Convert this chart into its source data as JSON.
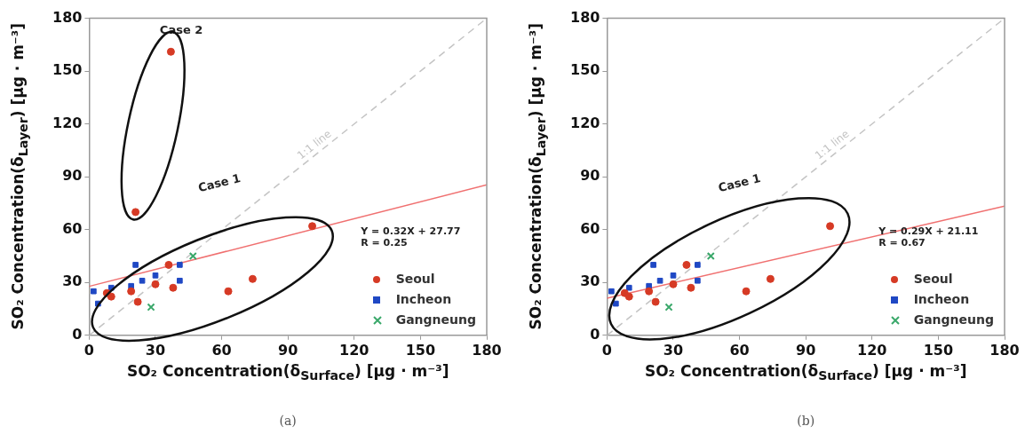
{
  "chart_data": [
    {
      "type": "scatter",
      "xlabel": "SO₂ Concentration(δ$_{Surface}$) [μg · m⁻³]",
      "ylabel": "SO₂ Concentration(δ$_{Layer}$) [μg · m⁻³]",
      "xlim": [
        0,
        180
      ],
      "ylim": [
        0,
        180
      ],
      "xticks": [
        0,
        30,
        60,
        90,
        120,
        150,
        180
      ],
      "yticks": [
        0,
        30,
        60,
        90,
        120,
        150,
        180
      ],
      "legend": "bottom right",
      "annotations": [
        "Case 2",
        "Case 1",
        "Y = 0.32X + 27.77",
        "R = 0.25",
        "(a)"
      ],
      "series": [
        {
          "name": "Seoul",
          "color": "#d63a25",
          "marker": "circle",
          "x": [
            21,
            37,
            101,
            36,
            30,
            38,
            19,
            8,
            10,
            22,
            63,
            74
          ],
          "values": [
            70,
            161,
            62,
            40,
            29,
            27,
            25,
            24,
            22,
            19,
            25,
            32
          ]
        },
        {
          "name": "Incheon",
          "color": "#1f48c4",
          "marker": "square",
          "x": [
            2,
            4,
            10,
            19,
            21,
            24,
            30,
            41,
            41
          ],
          "values": [
            25,
            18,
            27,
            28,
            40,
            31,
            34,
            40,
            31
          ]
        },
        {
          "name": "Gangneung",
          "color": "#3aa86a",
          "marker": "cross",
          "x": [
            47,
            28
          ],
          "values": [
            45,
            16
          ]
        },
        {
          "type": "line",
          "color": "#f07070",
          "marker": "none",
          "x": [
            0,
            180
          ],
          "values": [
            27.8,
            85.4
          ]
        },
        {
          "name": "1:1 line",
          "type": "line",
          "color": "#c4c4c4",
          "marker": "none",
          "line_style": "dashed",
          "x": [
            0,
            180
          ],
          "values": [
            0,
            180
          ]
        }
      ]
    },
    {
      "type": "scatter",
      "xlabel": "SO₂ Concentration(δ$_{Surface}$) [μg · m⁻³]",
      "ylabel": "SO₂ Concentration(δ$_{Layer}$) [μg · m⁻³]",
      "xlim": [
        0,
        180
      ],
      "ylim": [
        0,
        180
      ],
      "xticks": [
        0,
        30,
        60,
        90,
        120,
        150,
        180
      ],
      "yticks": [
        0,
        30,
        60,
        90,
        120,
        150,
        180
      ],
      "legend": "bottom right",
      "annotations": [
        "Case 1",
        "Y = 0.29X + 21.11",
        "R = 0.67",
        "(b)"
      ],
      "series": [
        {
          "name": "Seoul",
          "color": "#d63a25",
          "marker": "circle",
          "x": [
            101,
            36,
            30,
            38,
            19,
            8,
            10,
            22,
            63,
            74
          ],
          "values": [
            62,
            40,
            29,
            27,
            25,
            24,
            22,
            19,
            25,
            32
          ]
        },
        {
          "name": "Incheon",
          "color": "#1f48c4",
          "marker": "square",
          "x": [
            2,
            4,
            10,
            19,
            21,
            24,
            30,
            41,
            41
          ],
          "values": [
            25,
            18,
            27,
            28,
            40,
            31,
            34,
            40,
            31
          ]
        },
        {
          "name": "Gangneung",
          "color": "#3aa86a",
          "marker": "cross",
          "x": [
            47,
            28
          ],
          "values": [
            45,
            16
          ]
        },
        {
          "type": "line",
          "color": "#f07070",
          "marker": "none",
          "x": [
            0,
            180
          ],
          "values": [
            21.1,
            73.3
          ]
        },
        {
          "name": "1:1 line",
          "type": "line",
          "color": "#c4c4c4",
          "marker": "none",
          "line_style": "dashed",
          "x": [
            0,
            180
          ],
          "values": [
            0,
            180
          ]
        }
      ]
    }
  ]
}
